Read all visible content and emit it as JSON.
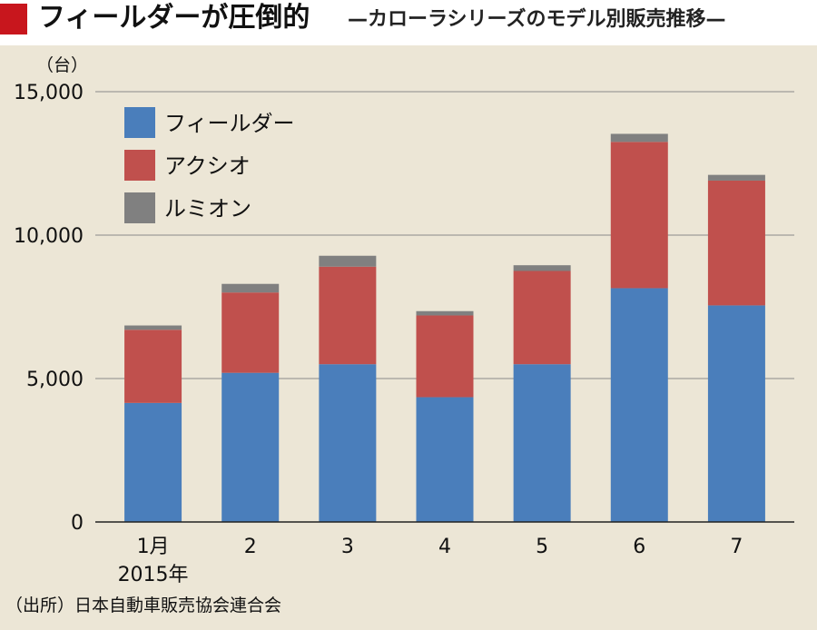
{
  "title": {
    "main": "フィールダーが圧倒的",
    "sub": "—カローラシリーズのモデル別販売推移—"
  },
  "colors": {
    "accent": "#c8161d",
    "background": "#ece6d6",
    "fielder": "#4a7ebb",
    "axio": "#c0504d",
    "rumion": "#808080"
  },
  "chart_data": {
    "type": "bar",
    "stacked": true,
    "unit_label": "（台）",
    "categories": [
      "1月",
      "2",
      "3",
      "4",
      "5",
      "6",
      "7"
    ],
    "category_sublabel": "2015年",
    "series": [
      {
        "name": "フィールダー",
        "color": "#4a7ebb",
        "values": [
          4150,
          5200,
          5500,
          4350,
          5500,
          8150,
          7550
        ]
      },
      {
        "name": "アクシオ",
        "color": "#c0504d",
        "values": [
          2550,
          2800,
          3400,
          2850,
          3250,
          5100,
          4350
        ]
      },
      {
        "name": "ルミオン",
        "color": "#808080",
        "values": [
          150,
          300,
          380,
          150,
          200,
          280,
          200
        ]
      }
    ],
    "ylim": [
      0,
      15000
    ],
    "yticks": [
      0,
      5000,
      10000,
      15000
    ],
    "ytick_labels": [
      "0",
      "5,000",
      "10,000",
      "15,000"
    ],
    "grid": true,
    "legend_position": "top-left"
  },
  "source": "（出所）日本自動車販売協会連合会"
}
